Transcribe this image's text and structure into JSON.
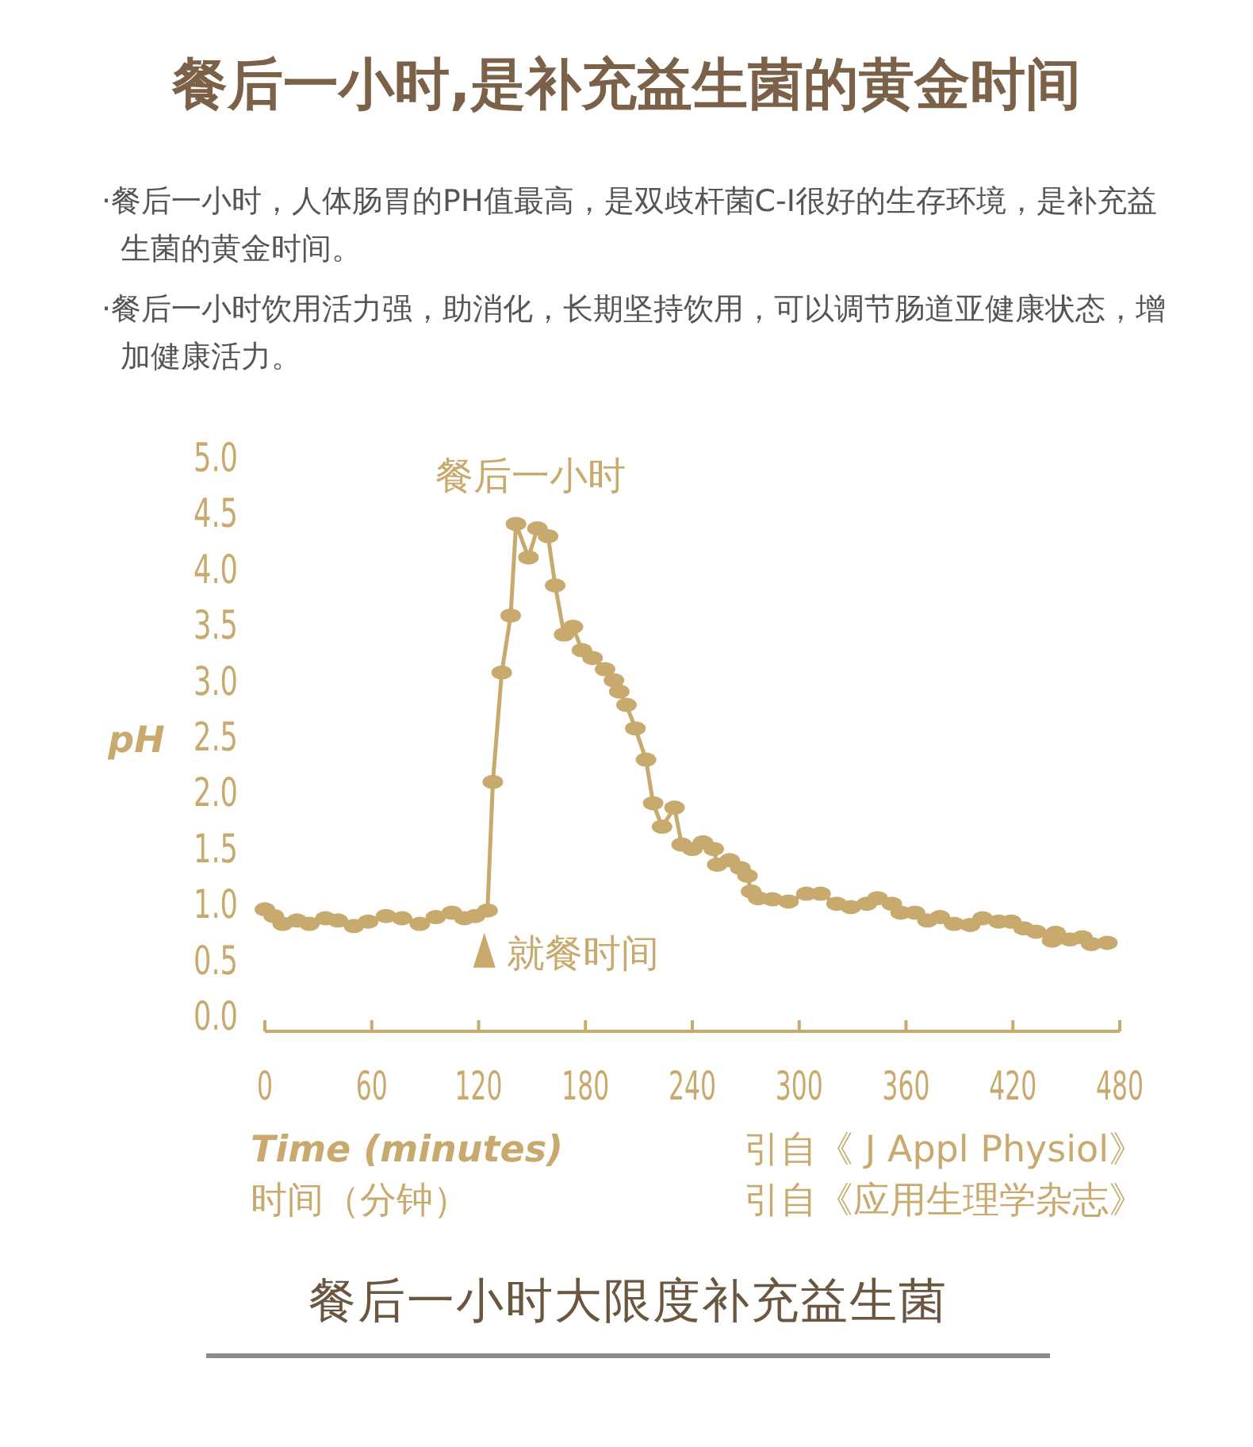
{
  "chart_data": {
    "type": "line",
    "title": "餐后一小时,是补充益生菌的黄金时间",
    "xlabel": "Time (minutes)",
    "ylabel": "pH",
    "annotations": [
      "·餐后一小时，人体肠胃的PH值最高，是双歧杆菌C-I很好的生存环境，是补充益生菌的黄金时间。",
      "·餐后一小时饮用活力强，助消化，长期坚持饮用，可以调节肠道亚健康状态，增加健康活力。",
      {
        "text": "餐后一小时",
        "x": 141,
        "y": 4.4
      },
      {
        "text": "就餐时间",
        "x": 125,
        "y": 0.94
      },
      "时间（分钟）",
      "引自《 J Appl Physiol》",
      "引自《应用生理学杂志》",
      "餐后一小时大限度补充益生菌"
    ],
    "x": [
      0,
      5,
      10,
      18,
      25,
      34,
      41,
      50,
      58,
      68,
      77,
      87,
      96,
      105,
      112,
      118,
      125,
      128,
      133,
      138,
      141,
      148,
      153,
      159,
      163,
      168,
      173,
      178,
      184,
      191,
      196,
      199,
      203,
      208,
      214,
      218,
      223,
      230,
      234,
      240,
      246,
      252,
      254,
      261,
      267,
      271,
      273,
      277,
      285,
      294,
      304,
      312,
      321,
      329,
      338,
      344,
      352,
      357,
      365,
      372,
      379,
      387,
      396,
      403,
      412,
      419,
      426,
      433,
      442,
      444,
      452,
      459,
      464,
      473
    ],
    "series": [
      {
        "color": "#c8a96e",
        "values": [
          0.95,
          0.89,
          0.82,
          0.85,
          0.82,
          0.87,
          0.85,
          0.8,
          0.84,
          0.89,
          0.87,
          0.82,
          0.88,
          0.92,
          0.87,
          0.89,
          0.94,
          2.09,
          3.07,
          3.58,
          4.4,
          4.1,
          4.36,
          4.29,
          3.85,
          3.41,
          3.48,
          3.27,
          3.2,
          3.1,
          3.0,
          2.9,
          2.78,
          2.57,
          2.29,
          1.9,
          1.69,
          1.86,
          1.53,
          1.49,
          1.55,
          1.49,
          1.35,
          1.39,
          1.32,
          1.25,
          1.11,
          1.05,
          1.04,
          1.02,
          1.09,
          1.09,
          1.0,
          0.97,
          1.0,
          1.05,
          1.0,
          0.92,
          0.92,
          0.85,
          0.88,
          0.82,
          0.81,
          0.87,
          0.84,
          0.84,
          0.78,
          0.75,
          0.67,
          0.74,
          0.68,
          0.7,
          0.64,
          0.65
        ]
      }
    ],
    "xlim": [
      0,
      480
    ],
    "xticks": [
      0,
      60,
      120,
      180,
      240,
      300,
      360,
      420,
      480
    ],
    "ylim": [
      0,
      5
    ],
    "yticks": [
      {
        "value": 0,
        "label": "0.0"
      },
      {
        "value": 0.5,
        "label": "0.5"
      },
      {
        "value": 1,
        "label": "1.0"
      },
      {
        "value": 1.5,
        "label": "1.5"
      },
      {
        "value": 2,
        "label": "2.0"
      },
      {
        "value": 2.5,
        "label": "2.5"
      },
      {
        "value": 3,
        "label": "3.0"
      },
      {
        "value": 3.5,
        "label": "3.5"
      },
      {
        "value": 4,
        "label": "4.0"
      },
      {
        "value": 4.5,
        "label": "4.5"
      },
      {
        "value": 5,
        "label": "5.0"
      }
    ],
    "marker": "circle",
    "line_style": "solid",
    "grid": false
  }
}
